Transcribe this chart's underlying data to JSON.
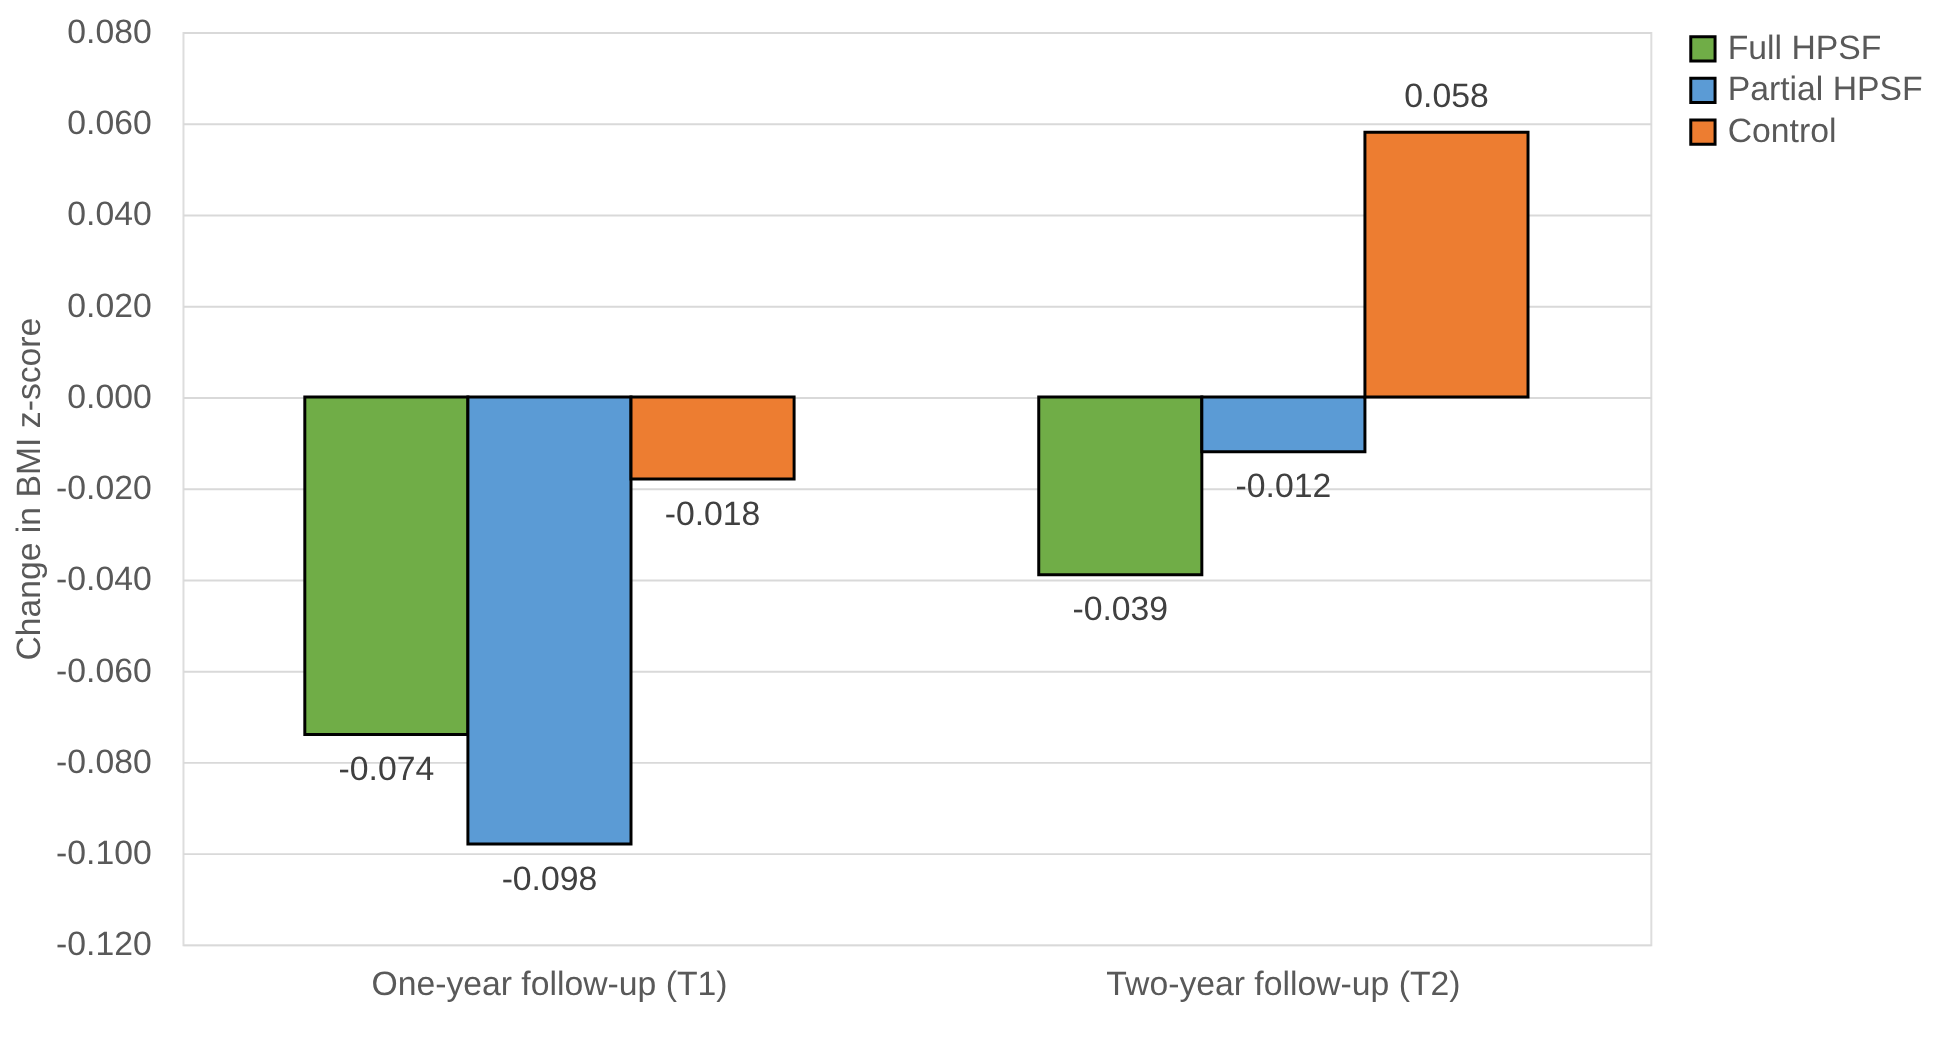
{
  "chart_data": {
    "type": "bar",
    "ylabel": "Change in BMI z-score",
    "categories": [
      "One-year follow-up (T1)",
      "Two-year follow-up (T2)"
    ],
    "series": [
      {
        "name": "Full HPSF",
        "color": "#70ad47",
        "values": [
          -0.074,
          -0.039
        ]
      },
      {
        "name": "Partial HPSF",
        "color": "#5b9bd5",
        "values": [
          -0.098,
          -0.012
        ]
      },
      {
        "name": "Control",
        "color": "#ed7d31",
        "values": [
          -0.018,
          0.058
        ]
      }
    ],
    "ylim": [
      -0.12,
      0.08
    ],
    "yticks": [
      {
        "value": -0.12,
        "label": "-0.120"
      },
      {
        "value": -0.1,
        "label": "-0.100"
      },
      {
        "value": -0.08,
        "label": "-0.080"
      },
      {
        "value": -0.06,
        "label": "-0.060"
      },
      {
        "value": -0.04,
        "label": "-0.040"
      },
      {
        "value": -0.02,
        "label": "-0.020"
      },
      {
        "value": 0,
        "label": "0.000"
      },
      {
        "value": 0.02,
        "label": "0.020"
      },
      {
        "value": 0.04,
        "label": "0.040"
      },
      {
        "value": 0.06,
        "label": "0.060"
      },
      {
        "value": 0.08,
        "label": "0.080"
      }
    ],
    "grid": "y",
    "legend": "right",
    "data_labels": true
  }
}
